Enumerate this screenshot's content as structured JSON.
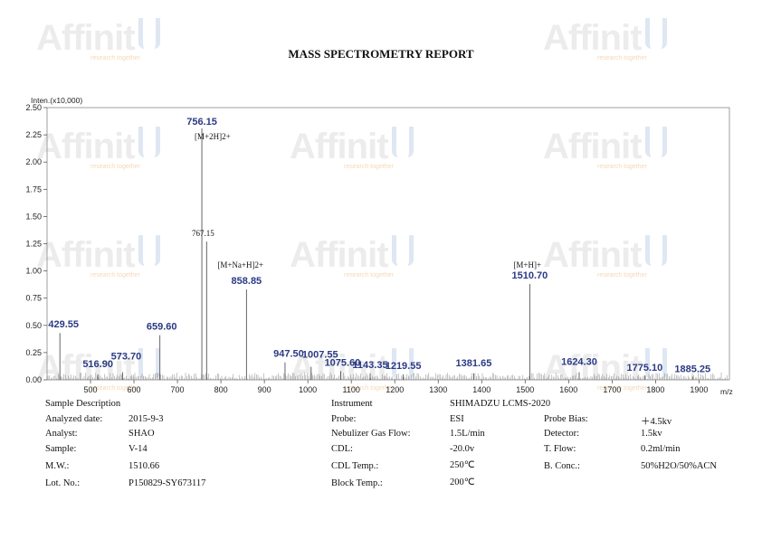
{
  "report": {
    "title": "MASS SPECTROMETRY REPORT"
  },
  "watermark": {
    "brand": "Affinit",
    "tagline": "research together"
  },
  "chart_data": {
    "type": "line",
    "title": "",
    "xlabel": "m/z",
    "ylabel": "Inten.(x10,000)",
    "xlim": [
      400,
      1970
    ],
    "ylim": [
      0,
      2.5
    ],
    "xticks": [
      500,
      600,
      700,
      800,
      900,
      1000,
      1100,
      1200,
      1300,
      1400,
      1500,
      1600,
      1700,
      1800,
      1900
    ],
    "yticks": [
      "0.00",
      "0.25",
      "0.50",
      "0.75",
      "1.00",
      "1.25",
      "1.50",
      "1.75",
      "2.00",
      "2.25",
      "2.50"
    ],
    "grid": false,
    "line_color": "#555555",
    "label_color": "#2b3a84",
    "peaks": [
      {
        "x": 429.55,
        "y": 0.43,
        "label": "429.55"
      },
      {
        "x": 516.9,
        "y": 0.05,
        "label": "516.90"
      },
      {
        "x": 573.7,
        "y": 0.07,
        "label": "573.70"
      },
      {
        "x": 659.6,
        "y": 0.41,
        "label": "659.60"
      },
      {
        "x": 756.15,
        "y": 2.31,
        "label": "756.15",
        "annotation": "[M+2H]2+"
      },
      {
        "x": 767.15,
        "y": 1.27,
        "label": "767.15"
      },
      {
        "x": 858.85,
        "y": 0.83,
        "label": "858.85",
        "annotation": "[M+Na+H]2+"
      },
      {
        "x": 947.5,
        "y": 0.16,
        "label": "947.50"
      },
      {
        "x": 1007.55,
        "y": 0.12,
        "label": "1007.55"
      },
      {
        "x": 1075.6,
        "y": 0.08,
        "label": "1075.60"
      },
      {
        "x": 1143.35,
        "y": 0.06,
        "label": "1143.35"
      },
      {
        "x": 1219.55,
        "y": 0.05,
        "label": "1219.55"
      },
      {
        "x": 1381.65,
        "y": 0.06,
        "label": "1381.65"
      },
      {
        "x": 1510.7,
        "y": 0.88,
        "label": "1510.70",
        "annotation": "[M+H]+"
      },
      {
        "x": 1624.3,
        "y": 0.07,
        "label": "1624.30"
      },
      {
        "x": 1775.1,
        "y": 0.04,
        "label": "1775.10"
      },
      {
        "x": 1885.25,
        "y": 0.03,
        "label": "1885.25"
      }
    ]
  },
  "info": {
    "sample_description": "Sample Description",
    "analyzed_date_label": "Analyzed date:",
    "analyzed_date": "2015-9-3",
    "analyst_label": "Analyst:",
    "analyst": "SHAO",
    "sample_label": "Sample:",
    "sample": "V-14",
    "mw_label": "M.W.:",
    "mw": "1510.66",
    "lot_label": "Lot. No.:",
    "lot": "P150829-SY673117",
    "instrument_label": "Instrument",
    "instrument": "SHIMADZU LCMS-2020",
    "probe_label": "Probe:",
    "probe": "ESI",
    "nebulizer_label": "Nebulizer Gas Flow:",
    "nebulizer": "1.5L/min",
    "cdl_label": "CDL:",
    "cdl": "-20.0v",
    "cdl_temp_label": "CDL Temp.:",
    "cdl_temp": "250℃",
    "block_temp_label": "Block Temp.:",
    "block_temp": "200℃",
    "probe_bias_label": "Probe Bias:",
    "probe_bias": "＋4.5kv",
    "detector_label": "Detector:",
    "detector": "1.5kv",
    "tflow_label": "T. Flow:",
    "tflow": "0.2ml/min",
    "bconc_label": "B. Conc.:",
    "bconc": "50%H2O/50%ACN"
  }
}
